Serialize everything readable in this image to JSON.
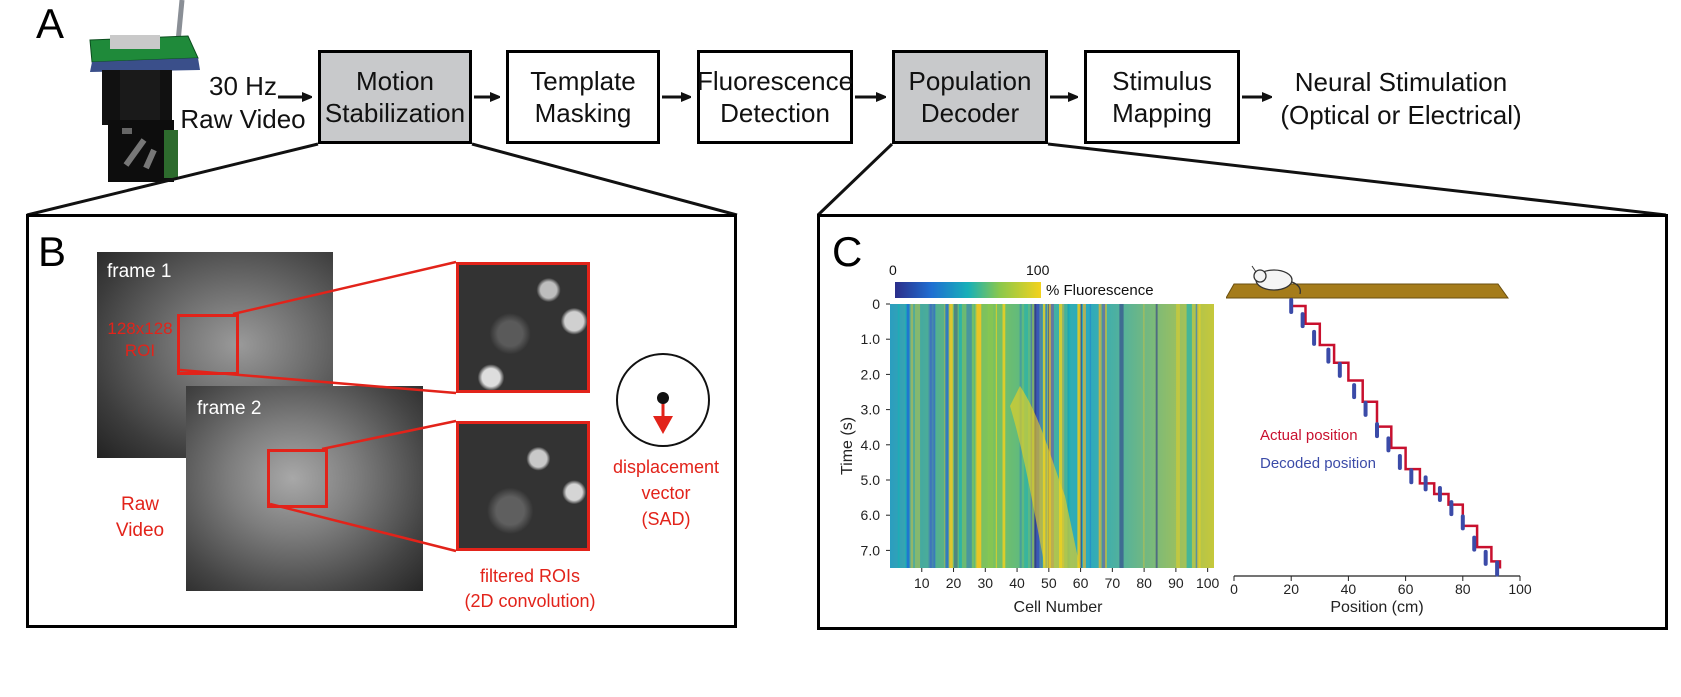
{
  "panel_a": {
    "letter": "A",
    "input_label_line1": "30 Hz",
    "input_label_line2": "Raw Video",
    "steps": [
      {
        "line1": "Motion",
        "line2": "Stabilization",
        "highlighted": true
      },
      {
        "line1": "Template",
        "line2": "Masking",
        "highlighted": false
      },
      {
        "line1": "Fluorescence",
        "line2": "Detection",
        "highlighted": false
      },
      {
        "line1": "Population",
        "line2": "Decoder",
        "highlighted": true
      },
      {
        "line1": "Stimulus",
        "line2": "Mapping",
        "highlighted": false
      }
    ],
    "output_line1": "Neural Stimulation",
    "output_line2": "(Optical or Electrical)"
  },
  "panel_b": {
    "letter": "B",
    "frame1_label": "frame 1",
    "frame2_label": "frame 2",
    "roi_label_line1": "128x128",
    "roi_label_line2": "ROI",
    "raw_video_line1": "Raw",
    "raw_video_line2": "Video",
    "filtered_line1": "filtered ROIs",
    "filtered_line2": "(2D convolution)",
    "displacement_line1": "displacement",
    "displacement_line2": "vector",
    "displacement_line3": "(SAD)",
    "accent_color": "#e2231a"
  },
  "panel_c": {
    "letter": "C",
    "colorbar_min": "0",
    "colorbar_max": "100",
    "colorbar_label": "% Fluorescence",
    "heatmap_ylabel": "Time (s)",
    "heatmap_xlabel": "Cell Number",
    "heatmap_yticks": [
      "0",
      "1.0",
      "2.0",
      "3.0",
      "4.0",
      "5.0",
      "6.0",
      "7.0"
    ],
    "heatmap_xticks": [
      "10",
      "20",
      "30",
      "40",
      "50",
      "60",
      "70",
      "80",
      "90",
      "100"
    ],
    "decoder_xlabel": "Position (cm)",
    "decoder_xticks": [
      "0",
      "20",
      "40",
      "60",
      "80",
      "100"
    ],
    "legend_actual": "Actual position",
    "legend_decoded": "Decoded position",
    "actual_color": "#c8102e",
    "decoded_color": "#3b4ba8",
    "track_color": "#a57c1b"
  },
  "chart_data": {
    "type": "line",
    "xlabel": "Position (cm)",
    "ylabel": "Time (s)",
    "xlim": [
      0,
      100
    ],
    "ylim": [
      0,
      7.5
    ],
    "series": [
      {
        "name": "Actual position",
        "x": [
          20,
          25,
          30,
          35,
          40,
          45,
          50,
          55,
          60,
          65,
          70,
          75,
          80,
          85,
          90,
          93
        ],
        "y": [
          0,
          0.5,
          1.1,
          1.6,
          2.1,
          2.7,
          3.4,
          4.0,
          4.6,
          5.0,
          5.3,
          5.6,
          6.2,
          6.8,
          7.2,
          7.4
        ]
      },
      {
        "name": "Decoded position",
        "x": [
          20,
          24,
          28,
          33,
          37,
          42,
          46,
          50,
          54,
          58,
          62,
          67,
          72,
          76,
          80,
          84,
          88,
          92
        ],
        "y": [
          0,
          0.4,
          0.9,
          1.4,
          1.8,
          2.4,
          2.9,
          3.5,
          3.9,
          4.4,
          4.8,
          5.0,
          5.3,
          5.7,
          6.1,
          6.7,
          7.1,
          7.4
        ]
      }
    ]
  }
}
